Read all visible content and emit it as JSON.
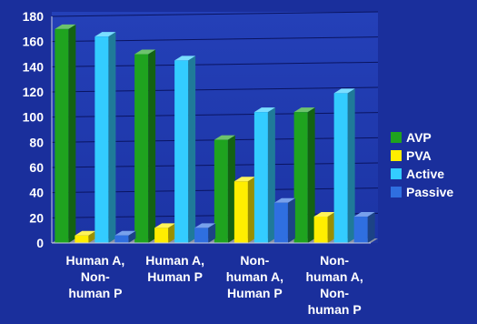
{
  "chart_data": {
    "type": "bar",
    "title": "",
    "xlabel": "",
    "ylabel": "",
    "ylim": [
      0,
      180
    ],
    "yticks": [
      0,
      20,
      40,
      60,
      80,
      100,
      120,
      140,
      160,
      180
    ],
    "grid": true,
    "legend_position": "right",
    "categories": [
      [
        "Human A,",
        "Non-",
        "human P"
      ],
      [
        "Human A,",
        "Human P"
      ],
      [
        "Non-",
        "human A,",
        "Human P"
      ],
      [
        "Non-",
        "human A,",
        "Non-",
        "human P"
      ]
    ],
    "series": [
      {
        "name": "AVP",
        "color": "#1fa31f",
        "values": [
          170,
          150,
          82,
          104
        ]
      },
      {
        "name": "PVA",
        "color": "#ffee00",
        "values": [
          6,
          12,
          49,
          21
        ]
      },
      {
        "name": "Active",
        "color": "#33ccff",
        "values": [
          164,
          145,
          104,
          119
        ]
      },
      {
        "name": "Passive",
        "color": "#2f6fe0",
        "values": [
          6,
          12,
          32,
          21
        ]
      }
    ]
  }
}
